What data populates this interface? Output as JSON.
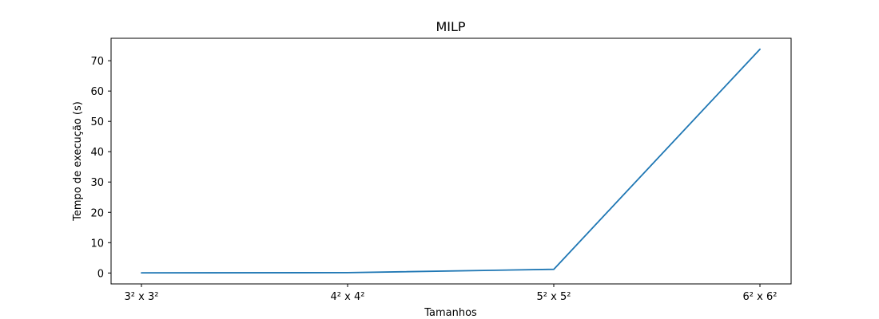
{
  "chart_data": {
    "type": "line",
    "title": "MILP",
    "xlabel": "Tamanhos",
    "ylabel": "Tempo de execução (s)",
    "categories": [
      "3² x 3²",
      "4² x 4²",
      "5² x 5²",
      "6² x 6²"
    ],
    "series": [
      {
        "values": [
          0.05,
          0.1,
          1.2,
          73.8
        ],
        "color": "#1f77b4"
      }
    ],
    "ylim": [
      -3.6,
      77.4
    ],
    "yticks": [
      0,
      10,
      20,
      30,
      40,
      50,
      60,
      70
    ],
    "grid": false,
    "legend": "none"
  }
}
